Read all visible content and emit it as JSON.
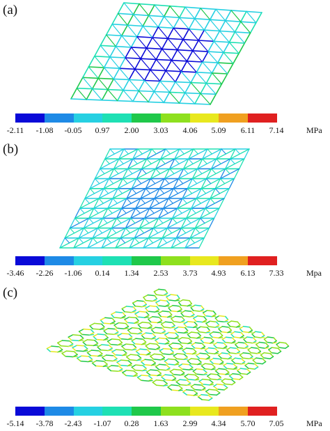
{
  "palette": [
    "#0a0ad8",
    "#1e8ae6",
    "#26d0e2",
    "#1ee0b4",
    "#1fc84a",
    "#8ee01e",
    "#e8e81e",
    "#f0a020",
    "#e02020"
  ],
  "panels": [
    {
      "label": "(a)",
      "mesh_type": "square-grid-with-diagonals",
      "ticks": [
        "-2.11",
        "-1.08",
        "-0.05",
        "0.97",
        "2.00",
        "3.03",
        "4.06",
        "5.09",
        "6.11",
        "7.14"
      ],
      "unit": "MPa"
    },
    {
      "label": "(b)",
      "mesh_type": "triangular-grid",
      "ticks": [
        "-3.46",
        "-2.26",
        "-1.06",
        "0.14",
        "1.34",
        "2.53",
        "3.73",
        "4.93",
        "6.13",
        "7.33"
      ],
      "unit": "Mpa"
    },
    {
      "label": "(c)",
      "mesh_type": "hexagonal-grid",
      "ticks": [
        "-5.14",
        "-3.78",
        "-2.43",
        "-1.07",
        "0.28",
        "1.63",
        "2.99",
        "4.34",
        "5.70",
        "7.05"
      ],
      "unit": "MPa"
    }
  ]
}
